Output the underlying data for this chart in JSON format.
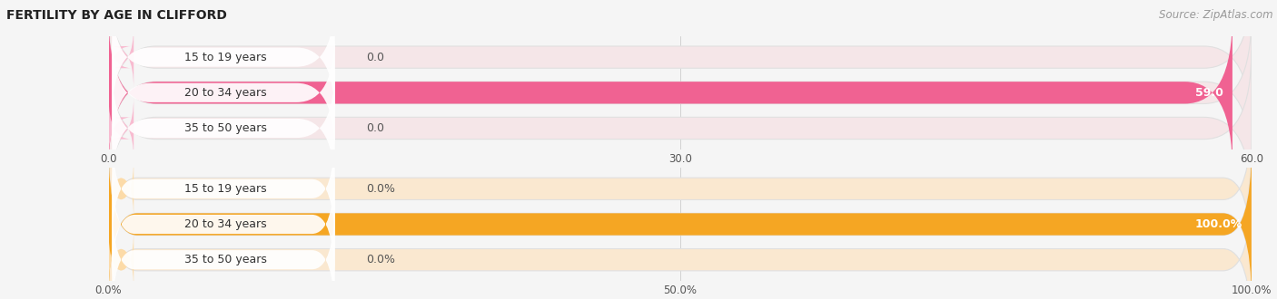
{
  "title": "FERTILITY BY AGE IN CLIFFORD",
  "source": "Source: ZipAtlas.com",
  "top_chart": {
    "categories": [
      "15 to 19 years",
      "20 to 34 years",
      "35 to 50 years"
    ],
    "values": [
      0.0,
      59.0,
      0.0
    ],
    "max_val": 60.0,
    "tick_vals": [
      0.0,
      30.0,
      60.0
    ],
    "tick_labels": [
      "0.0",
      "30.0",
      "60.0"
    ],
    "bar_color": "#F06292",
    "bar_bg_color": "#F5E6E8",
    "bar_light_color": "#F8BBD0",
    "label_color_inside": "#FFFFFF",
    "label_color_outside": "#555555"
  },
  "bottom_chart": {
    "categories": [
      "15 to 19 years",
      "20 to 34 years",
      "35 to 50 years"
    ],
    "values": [
      0.0,
      100.0,
      0.0
    ],
    "max_val": 100.0,
    "tick_vals": [
      0.0,
      50.0,
      100.0
    ],
    "tick_labels": [
      "0.0%",
      "50.0%",
      "100.0%"
    ],
    "bar_color": "#F5A623",
    "bar_bg_color": "#FAE8D0",
    "bar_light_color": "#FCDBA8",
    "label_color_inside": "#FFFFFF",
    "label_color_outside": "#555555"
  },
  "background_color": "#F5F5F5",
  "panel_bg": "#EFEFEF",
  "title_fontsize": 10,
  "source_fontsize": 8.5,
  "label_fontsize": 9,
  "category_fontsize": 9,
  "tick_fontsize": 8.5
}
